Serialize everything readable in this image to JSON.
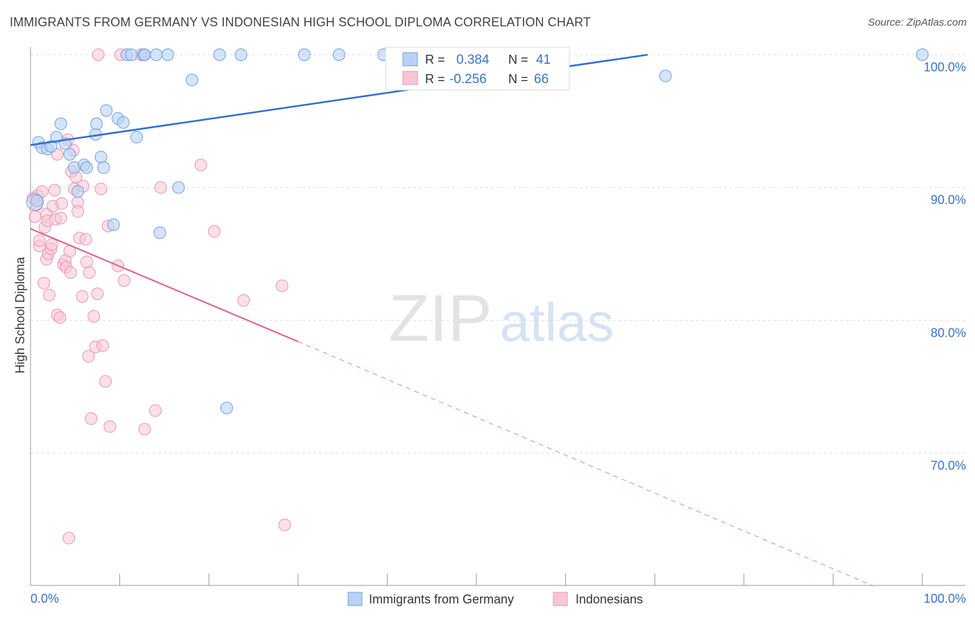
{
  "title": "IMMIGRANTS FROM GERMANY VS INDONESIAN HIGH SCHOOL DIPLOMA CORRELATION CHART",
  "source": "Source: ZipAtlas.com",
  "watermark": {
    "zip": "ZIP",
    "atlas": "atlas"
  },
  "colors": {
    "blue_fill": "#b9d2f3",
    "blue_stroke": "#6f9fe0",
    "blue_line": "#2f6fcf",
    "pink_fill": "#f8c6d6",
    "pink_stroke": "#ec93b0",
    "pink_line": "#e0688f",
    "axis_label": "#3b73c7",
    "grid": "#dddddd"
  },
  "legend_box": {
    "rows": [
      {
        "r_label": "R =",
        "r_value": "0.384",
        "n_label": "N =",
        "n_value": "41",
        "series": "blue"
      },
      {
        "r_label": "R =",
        "r_value": "-0.256",
        "n_label": "N =",
        "n_value": "66",
        "series": "pink"
      }
    ]
  },
  "chart_data": {
    "type": "scatter",
    "title": "IMMIGRANTS FROM GERMANY VS INDONESIAN HIGH SCHOOL DIPLOMA CORRELATION CHART",
    "xlabel": "",
    "ylabel": "High School Diploma",
    "xlim": [
      0,
      100
    ],
    "ylim": [
      60,
      100
    ],
    "x_tick_labels": [
      "0.0%",
      "100.0%"
    ],
    "y_ticks": [
      {
        "value": 100,
        "label": "100.0%"
      },
      {
        "value": 90,
        "label": "90.0%"
      },
      {
        "value": 80,
        "label": "80.0%"
      },
      {
        "value": 70,
        "label": "70.0%"
      }
    ],
    "grid": true,
    "legend_position": "bottom",
    "series": [
      {
        "name": "Immigrants from Germany",
        "color": "blue",
        "points": [
          [
            0.7,
            89
          ],
          [
            0.9,
            93.4
          ],
          [
            1.3,
            93
          ],
          [
            1.9,
            92.9
          ],
          [
            2.3,
            93.1
          ],
          [
            2.9,
            93.8
          ],
          [
            3.4,
            94.8
          ],
          [
            3.9,
            93.3
          ],
          [
            4.4,
            92.5
          ],
          [
            4.9,
            91.5
          ],
          [
            5.3,
            89.7
          ],
          [
            6.0,
            91.7
          ],
          [
            6.3,
            91.5
          ],
          [
            7.3,
            94.0
          ],
          [
            7.4,
            94.8
          ],
          [
            7.9,
            92.3
          ],
          [
            8.2,
            91.5
          ],
          [
            8.5,
            95.8
          ],
          [
            9.3,
            87.2
          ],
          [
            9.8,
            95.2
          ],
          [
            10.4,
            94.9
          ],
          [
            10.8,
            100
          ],
          [
            11.3,
            100
          ],
          [
            11.9,
            93.8
          ],
          [
            12.7,
            100
          ],
          [
            12.8,
            100
          ],
          [
            14.1,
            100
          ],
          [
            15.4,
            100
          ],
          [
            14.5,
            86.6
          ],
          [
            16.6,
            90
          ],
          [
            18.1,
            98.1
          ],
          [
            21.2,
            100
          ],
          [
            23.6,
            100
          ],
          [
            22.0,
            73.4
          ],
          [
            30.7,
            100
          ],
          [
            34.6,
            100
          ],
          [
            39.6,
            100
          ],
          [
            43.3,
            100
          ],
          [
            47.5,
            100
          ],
          [
            71.2,
            98.4
          ],
          [
            100,
            100
          ]
        ]
      },
      {
        "name": "Indonesians",
        "color": "pink",
        "points": [
          [
            0.3,
            89.2
          ],
          [
            0.5,
            87.8
          ],
          [
            0.7,
            88.7
          ],
          [
            0.8,
            89.4
          ],
          [
            1.0,
            85.6
          ],
          [
            1.0,
            86.0
          ],
          [
            1.3,
            89.7
          ],
          [
            1.5,
            82.8
          ],
          [
            1.6,
            87.0
          ],
          [
            1.8,
            84.6
          ],
          [
            1.8,
            88.0
          ],
          [
            1.9,
            87.5
          ],
          [
            2.0,
            85.0
          ],
          [
            2.1,
            81.9
          ],
          [
            2.3,
            85.4
          ],
          [
            2.4,
            85.7
          ],
          [
            2.5,
            88.6
          ],
          [
            2.7,
            89.8
          ],
          [
            2.8,
            87.6
          ],
          [
            3.0,
            92.5
          ],
          [
            3.0,
            80.4
          ],
          [
            3.3,
            80.2
          ],
          [
            3.4,
            87.7
          ],
          [
            3.5,
            88.8
          ],
          [
            3.7,
            84.2
          ],
          [
            3.9,
            84.5
          ],
          [
            4.0,
            84.0
          ],
          [
            4.2,
            93.6
          ],
          [
            4.3,
            63.6
          ],
          [
            4.4,
            85.2
          ],
          [
            4.5,
            83.6
          ],
          [
            4.6,
            91.2
          ],
          [
            4.8,
            92.8
          ],
          [
            4.9,
            89.9
          ],
          [
            5.1,
            90.8
          ],
          [
            5.3,
            88.9
          ],
          [
            5.3,
            88.2
          ],
          [
            5.5,
            86.2
          ],
          [
            5.8,
            81.8
          ],
          [
            5.9,
            90.1
          ],
          [
            6.2,
            86.1
          ],
          [
            6.3,
            84.4
          ],
          [
            6.5,
            77.3
          ],
          [
            6.6,
            83.6
          ],
          [
            6.8,
            72.6
          ],
          [
            7.1,
            80.3
          ],
          [
            7.3,
            78.0
          ],
          [
            7.5,
            82.0
          ],
          [
            7.6,
            100
          ],
          [
            7.9,
            89.9
          ],
          [
            8.1,
            78.1
          ],
          [
            8.4,
            75.4
          ],
          [
            8.7,
            87.1
          ],
          [
            8.9,
            72.0
          ],
          [
            9.8,
            84.1
          ],
          [
            10.1,
            100
          ],
          [
            10.5,
            83.0
          ],
          [
            12.4,
            100
          ],
          [
            12.8,
            71.8
          ],
          [
            14.0,
            73.2
          ],
          [
            14.6,
            90.0
          ],
          [
            19.1,
            91.7
          ],
          [
            20.6,
            86.7
          ],
          [
            23.9,
            81.5
          ],
          [
            28.2,
            82.6
          ],
          [
            28.5,
            64.6
          ]
        ]
      }
    ],
    "trend_lines": [
      {
        "series": "Immigrants from Germany",
        "from": [
          0,
          93.2
        ],
        "to": [
          69.2,
          100
        ]
      },
      {
        "series": "Indonesians",
        "solid_from": [
          0,
          86.9
        ],
        "solid_to": [
          30,
          78.4
        ],
        "dashed_to": [
          94.5,
          60.0
        ]
      }
    ]
  }
}
